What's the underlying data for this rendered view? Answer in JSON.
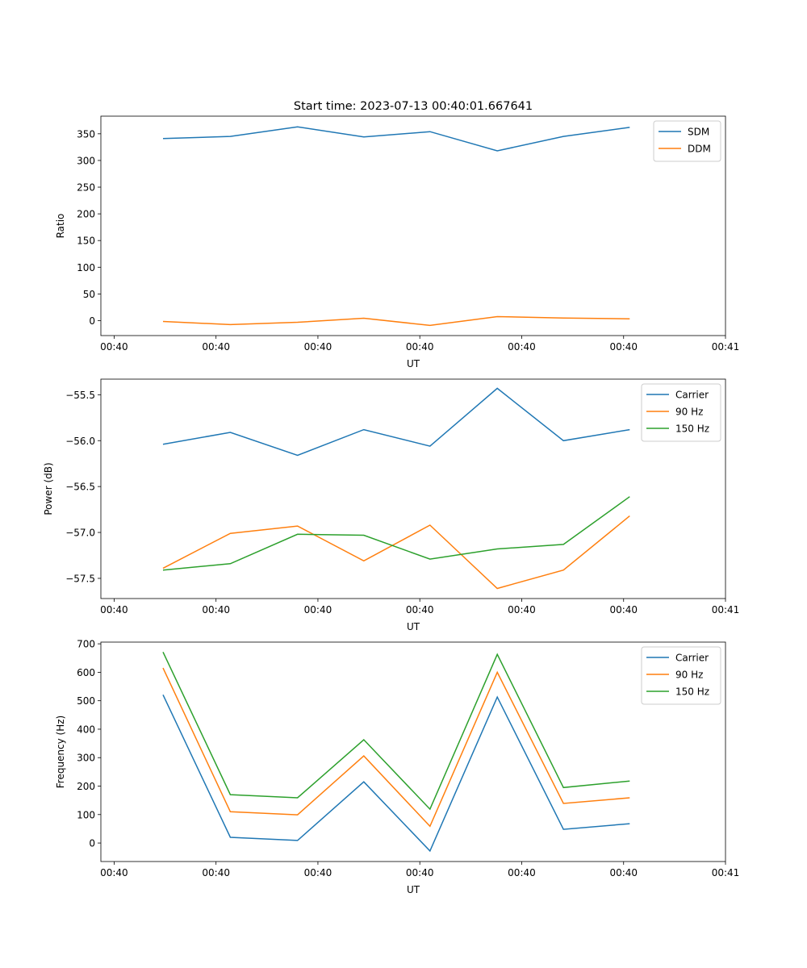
{
  "figure_title": "Start time: 2023-07-13 00:40:01.667641",
  "chart_data": [
    {
      "type": "line",
      "xlabel": "UT",
      "ylabel": "Ratio",
      "x_tick_labels": [
        "00:40",
        "00:40",
        "00:40",
        "00:40",
        "00:40",
        "00:40",
        "00:41"
      ],
      "x_ticks": [
        0,
        1,
        2,
        3,
        4,
        5,
        6
      ],
      "xlim": [
        -0.13,
        6
      ],
      "x": [
        0.48,
        1.14,
        1.8,
        2.45,
        3.1,
        3.76,
        4.41,
        5.06
      ],
      "yticks": [
        0,
        50,
        100,
        150,
        200,
        250,
        300,
        350
      ],
      "ylim": [
        -28,
        383
      ],
      "legend": "top-right",
      "series": [
        {
          "name": "SDM",
          "color": "#1f77b4",
          "values": [
            341,
            345,
            363,
            344,
            354,
            318,
            345,
            362
          ]
        },
        {
          "name": "DDM",
          "color": "#ff7f0e",
          "values": [
            -1.5,
            -7.5,
            -3,
            4.5,
            -9,
            7.5,
            5,
            3.5
          ]
        }
      ]
    },
    {
      "type": "line",
      "xlabel": "UT",
      "ylabel": "Power (dB)",
      "x_tick_labels": [
        "00:40",
        "00:40",
        "00:40",
        "00:40",
        "00:40",
        "00:40",
        "00:41"
      ],
      "x_ticks": [
        0,
        1,
        2,
        3,
        4,
        5,
        6
      ],
      "xlim": [
        -0.13,
        6
      ],
      "x": [
        0.48,
        1.14,
        1.8,
        2.45,
        3.1,
        3.76,
        4.41,
        5.06
      ],
      "yticks": [
        -57.5,
        -57.0,
        -56.5,
        -56.0,
        -55.5
      ],
      "ytick_labels": [
        "−57.5",
        "−57.0",
        "−56.5",
        "−56.0",
        "−55.5"
      ],
      "ylim": [
        -57.72,
        -55.33
      ],
      "legend": "top-right",
      "series": [
        {
          "name": "Carrier",
          "color": "#1f77b4",
          "values": [
            -56.04,
            -55.91,
            -56.16,
            -55.88,
            -56.06,
            -55.43,
            -56.0,
            -55.88
          ]
        },
        {
          "name": "90 Hz",
          "color": "#ff7f0e",
          "values": [
            -57.39,
            -57.01,
            -56.93,
            -57.31,
            -56.92,
            -57.61,
            -57.41,
            -56.82
          ]
        },
        {
          "name": "150 Hz",
          "color": "#2ca02c",
          "values": [
            -57.41,
            -57.34,
            -57.02,
            -57.03,
            -57.29,
            -57.18,
            -57.13,
            -56.61
          ]
        }
      ]
    },
    {
      "type": "line",
      "xlabel": "UT",
      "ylabel": "Frequency (Hz)",
      "x_tick_labels": [
        "00:40",
        "00:40",
        "00:40",
        "00:40",
        "00:40",
        "00:40",
        "00:41"
      ],
      "x_ticks": [
        0,
        1,
        2,
        3,
        4,
        5,
        6
      ],
      "xlim": [
        -0.13,
        6
      ],
      "x": [
        0.48,
        1.14,
        1.8,
        2.45,
        3.1,
        3.76,
        4.41,
        5.06
      ],
      "yticks": [
        0,
        100,
        200,
        300,
        400,
        500,
        600,
        700
      ],
      "ylim": [
        -65,
        706
      ],
      "legend": "top-right",
      "series": [
        {
          "name": "Carrier",
          "color": "#1f77b4",
          "values": [
            521,
            20,
            9,
            215,
            -28,
            513,
            48,
            68
          ]
        },
        {
          "name": "90 Hz",
          "color": "#ff7f0e",
          "values": [
            615,
            110,
            99,
            306,
            59,
            600,
            139,
            159
          ]
        },
        {
          "name": "150 Hz",
          "color": "#2ca02c",
          "values": [
            671,
            170,
            159,
            363,
            119,
            663,
            195,
            218
          ]
        }
      ]
    }
  ]
}
